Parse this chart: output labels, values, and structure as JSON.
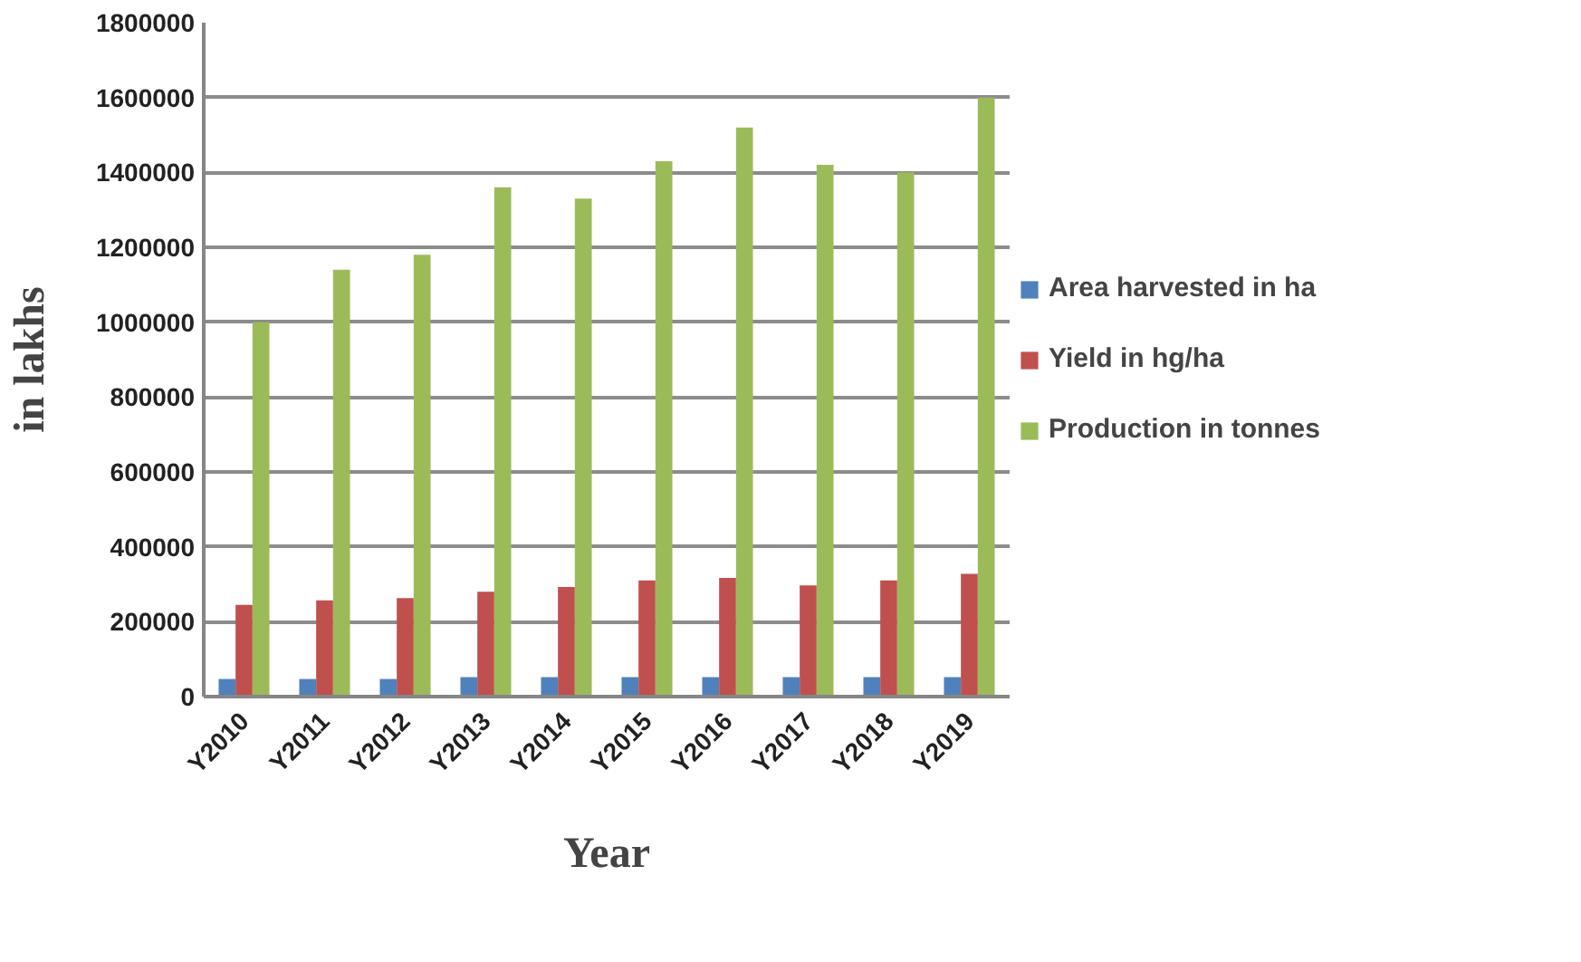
{
  "chart_data": {
    "type": "bar",
    "xlabel": "Year",
    "ylabel": "in lakhs",
    "categories": [
      "Y2010",
      "Y2011",
      "Y2012",
      "Y2013",
      "Y2014",
      "Y2015",
      "Y2016",
      "Y2017",
      "Y2018",
      "Y2019"
    ],
    "series": [
      {
        "name": "Area harvested in ha",
        "color": "#4f81bd",
        "values": [
          47000,
          47000,
          47000,
          52000,
          52000,
          52000,
          52000,
          52000,
          52000,
          52000
        ]
      },
      {
        "name": "Yield in hg/ha",
        "color": "#c0504d",
        "values": [
          245000,
          257000,
          263000,
          280000,
          293000,
          310000,
          317000,
          297000,
          310000,
          328000
        ]
      },
      {
        "name": "Production in tonnes",
        "color": "#9bbb59",
        "values": [
          1000000,
          1140000,
          1180000,
          1360000,
          1330000,
          1430000,
          1520000,
          1420000,
          1400000,
          1600000
        ]
      }
    ],
    "ylim": [
      0,
      1800000
    ],
    "yticks": [
      0,
      200000,
      400000,
      600000,
      800000,
      1000000,
      1200000,
      1400000,
      1600000,
      1800000
    ],
    "grid": "y",
    "legend": "right"
  }
}
